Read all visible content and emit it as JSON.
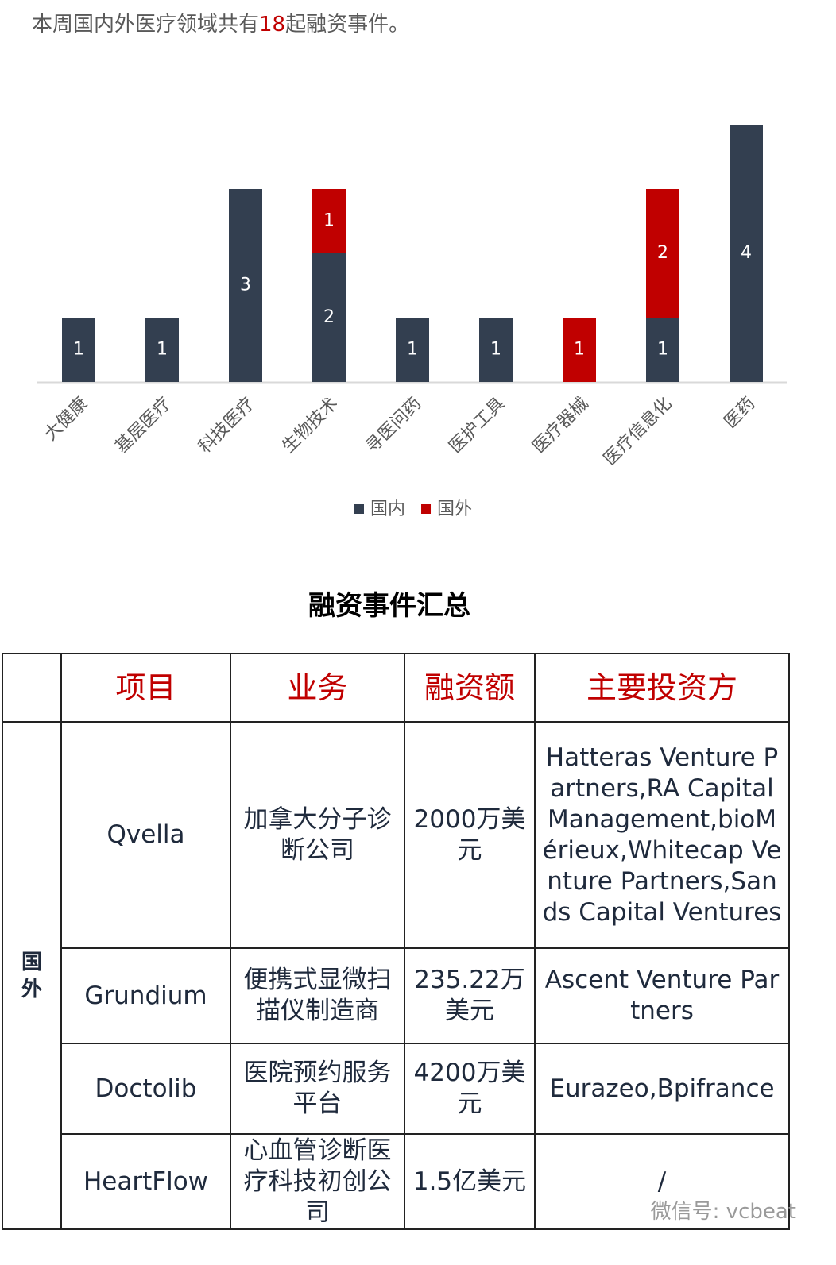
{
  "intro": {
    "before": "本周国内外医疗领域共有",
    "count": 18,
    "after": "起融资事件。"
  },
  "chart_data": {
    "type": "stacked-bar",
    "categories": [
      "大健康",
      "基层医疗",
      "科技医疗",
      "生物技术",
      "寻医问药",
      "医护工具",
      "医疗器械",
      "医疗信息化",
      "医药"
    ],
    "series": [
      {
        "name": "国内",
        "color": "#333f50",
        "values": [
          1,
          1,
          3,
          2,
          1,
          1,
          null,
          1,
          4
        ]
      },
      {
        "name": "国外",
        "color": "#c00000",
        "values": [
          null,
          null,
          null,
          1,
          null,
          null,
          1,
          2,
          null
        ]
      }
    ],
    "ylim": [
      0,
      4
    ],
    "legend": "bottom"
  },
  "table": {
    "title": "融资事件汇总",
    "group": "国外",
    "header": [
      "项目",
      "业务",
      "融资额",
      "主要投资方"
    ],
    "rows": [
      [
        "Qvella",
        "加拿大分子诊断公司",
        "2000万美元",
        "Hatteras Venture Partners,RA Capital Management,bioMérieux,Whitecap Venture Partners,Sands Capital Ventures"
      ],
      [
        "Grundium",
        "便携式显微扫描仪制造商",
        "235.22万美元",
        "Ascent Venture Partners"
      ],
      [
        "Doctolib",
        "医院预约服务平台",
        "4200万美元",
        "Eurazeo,Bpifrance"
      ],
      [
        "HeartFlow",
        "心血管诊断医疗科技初创公司",
        "1.5亿美元",
        "/"
      ]
    ]
  },
  "watermark": "微信号: vcbeat"
}
